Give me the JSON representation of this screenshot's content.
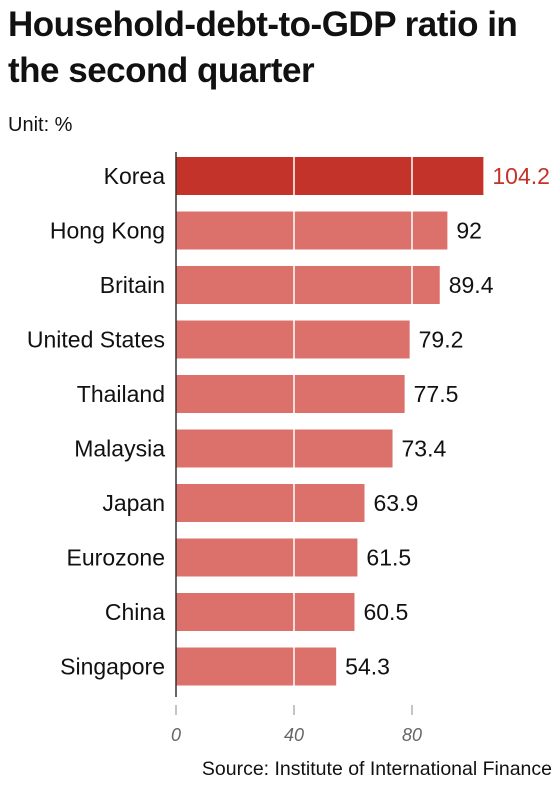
{
  "chart_data": {
    "type": "bar",
    "orientation": "horizontal",
    "title": "Household-debt-to-GDP ratio in the second quarter",
    "unit_label": "Unit: %",
    "source": "Source: Institute of International Finance",
    "categories": [
      "Korea",
      "Hong Kong",
      "Britain",
      "United States",
      "Thailand",
      "Malaysia",
      "Japan",
      "Eurozone",
      "China",
      "Singapore"
    ],
    "values": [
      104.2,
      92,
      89.4,
      79.2,
      77.5,
      73.4,
      63.9,
      61.5,
      60.5,
      54.3
    ],
    "value_labels": [
      "104.2",
      "92",
      "89.4",
      "79.2",
      "77.5",
      "73.4",
      "63.9",
      "61.5",
      "60.5",
      "54.3"
    ],
    "highlight_index": 0,
    "xlim": [
      0,
      105
    ],
    "xticks": [
      0,
      40,
      80
    ],
    "xtick_labels": [
      "0",
      "40",
      "80"
    ],
    "grid": true,
    "colors": {
      "highlight": "#c3332a",
      "bar": "#dc706a",
      "highlight_label": "#c3332a",
      "gridline": "#ffffff",
      "axis": "#333333"
    }
  }
}
